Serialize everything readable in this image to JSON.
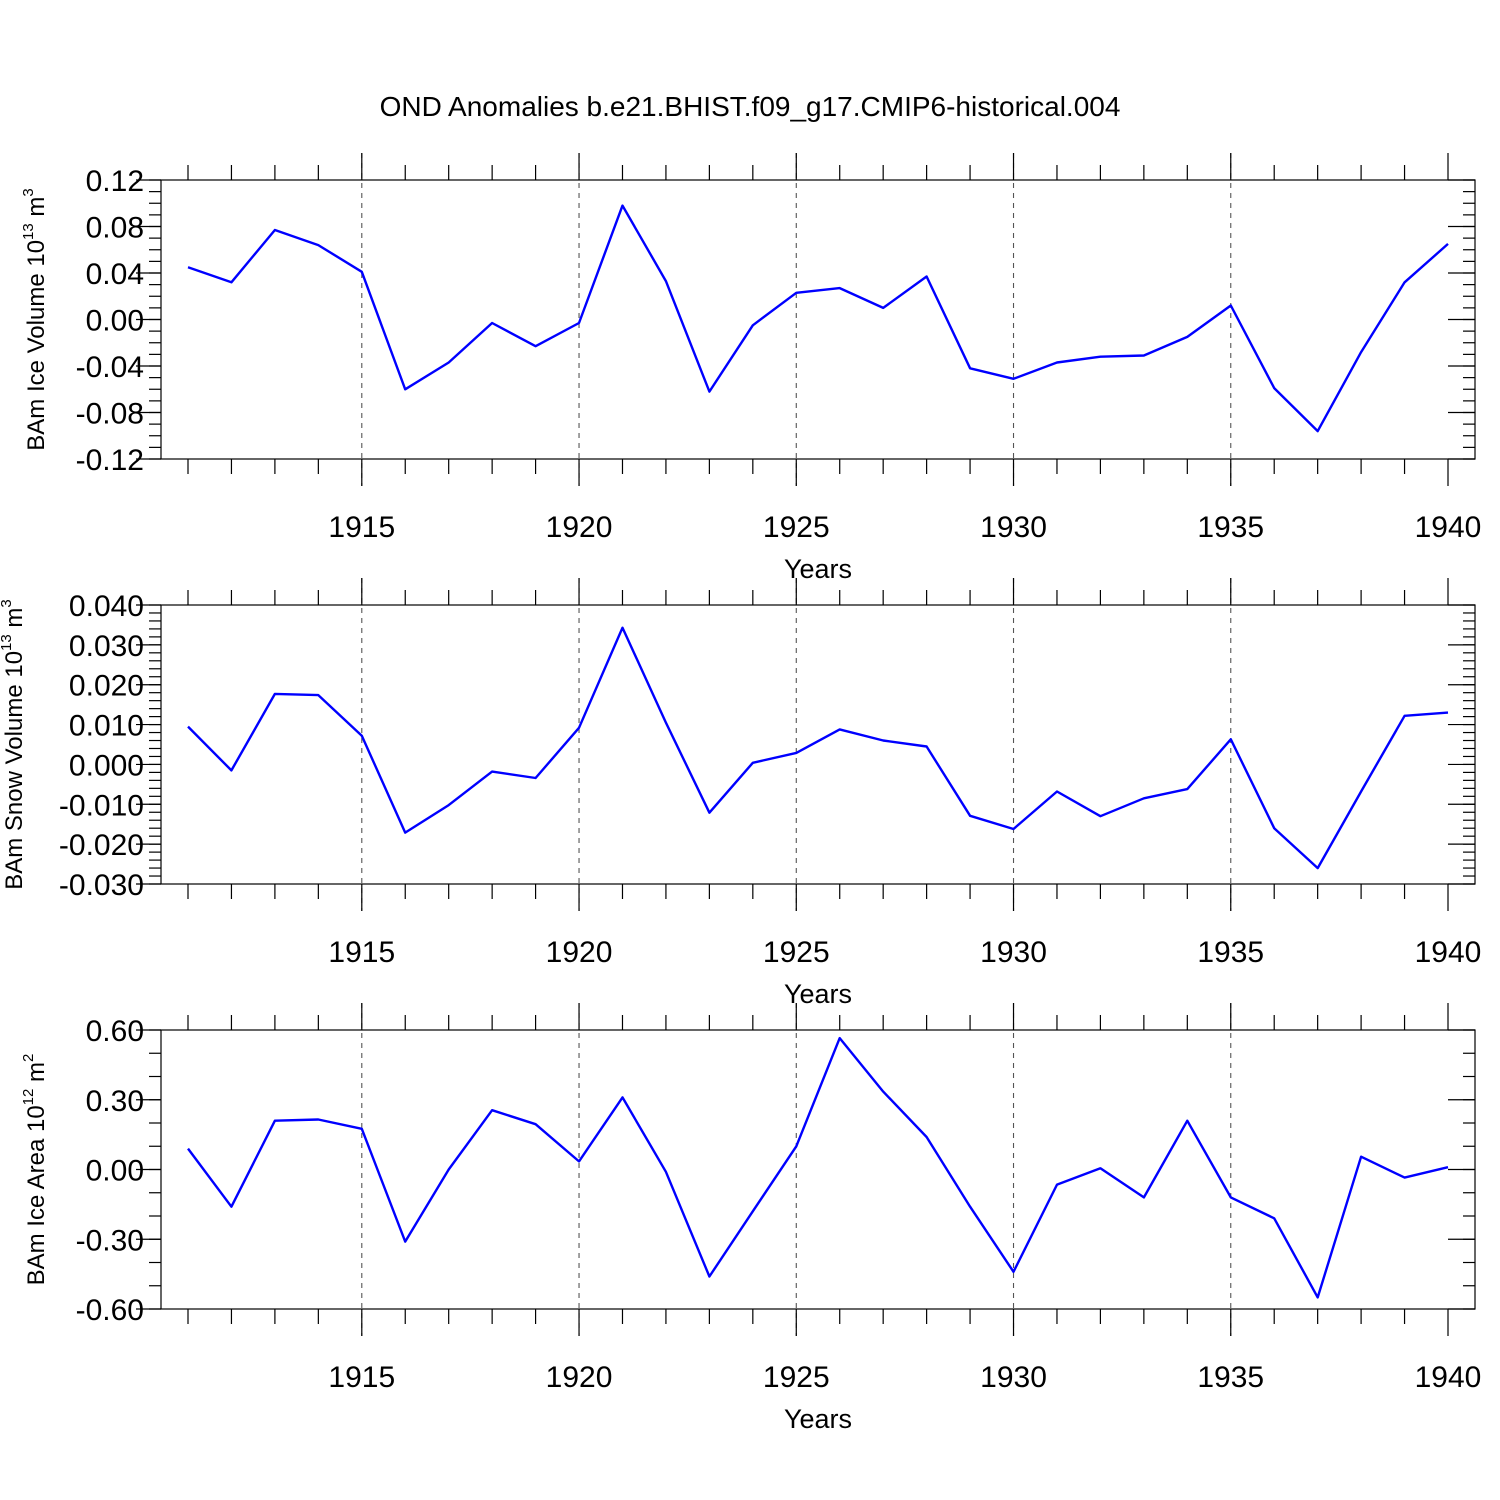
{
  "title": "OND Anomalies b.e21.BHIST.f09_g17.CMIP6-historical.004",
  "line_color": "#0000ff",
  "chart_data": [
    {
      "type": "line",
      "ylabel": "BAm Ice Volume 10",
      "ylabel_exp": "13",
      "ylabel_unit": " m",
      "ylabel_unit_exp": "3",
      "xlabel": "Years",
      "xlim": [
        1911,
        1940
      ],
      "ylim": [
        -0.12,
        0.12
      ],
      "ytick_values": [
        -0.12,
        -0.08,
        -0.04,
        0.0,
        0.04,
        0.08,
        0.12
      ],
      "ytick_labels": [
        "-0.12",
        "-0.08",
        "-0.04",
        "0.00",
        "0.04",
        "0.08",
        "0.12"
      ],
      "yminor_step": 0.01,
      "xtick_values": [
        1915,
        1920,
        1925,
        1930,
        1935,
        1940
      ],
      "xtick_labels": [
        "1915",
        "1920",
        "1925",
        "1930",
        "1935",
        "1940"
      ],
      "x": [
        1911,
        1912,
        1913,
        1914,
        1915,
        1916,
        1917,
        1918,
        1919,
        1920,
        1921,
        1922,
        1923,
        1924,
        1925,
        1926,
        1927,
        1928,
        1929,
        1930,
        1931,
        1932,
        1933,
        1934,
        1935,
        1936,
        1937,
        1938,
        1939,
        1940
      ],
      "values": [
        0.045,
        0.032,
        0.077,
        0.064,
        0.041,
        -0.06,
        -0.037,
        -0.003,
        -0.023,
        -0.003,
        0.098,
        0.033,
        -0.062,
        -0.005,
        0.023,
        0.027,
        0.01,
        0.037,
        -0.042,
        -0.051,
        -0.037,
        -0.032,
        -0.031,
        -0.015,
        0.012,
        -0.059,
        -0.096,
        -0.028,
        0.032,
        0.065
      ]
    },
    {
      "type": "line",
      "ylabel": "BAm Snow Volume 10",
      "ylabel_exp": "13",
      "ylabel_unit": " m",
      "ylabel_unit_exp": "3",
      "xlabel": "Years",
      "xlim": [
        1911,
        1940
      ],
      "ylim": [
        -0.03,
        0.04
      ],
      "ytick_values": [
        -0.03,
        -0.02,
        -0.01,
        0.0,
        0.01,
        0.02,
        0.03,
        0.04
      ],
      "ytick_labels": [
        "-0.030",
        "-0.020",
        "-0.010",
        "0.000",
        "0.010",
        "0.020",
        "0.030",
        "0.040"
      ],
      "yminor_step": 0.002,
      "xtick_values": [
        1915,
        1920,
        1925,
        1930,
        1935,
        1940
      ],
      "xtick_labels": [
        "1915",
        "1920",
        "1925",
        "1930",
        "1935",
        "1940"
      ],
      "x": [
        1911,
        1912,
        1913,
        1914,
        1915,
        1916,
        1917,
        1918,
        1919,
        1920,
        1921,
        1922,
        1923,
        1924,
        1925,
        1926,
        1927,
        1928,
        1929,
        1930,
        1931,
        1932,
        1933,
        1934,
        1935,
        1936,
        1937,
        1938,
        1939,
        1940
      ],
      "values": [
        0.0095,
        -0.0015,
        0.0177,
        0.0174,
        0.0072,
        -0.0171,
        -0.0102,
        -0.0018,
        -0.0034,
        0.0092,
        0.0343,
        0.0105,
        -0.0121,
        0.0004,
        0.0029,
        0.0088,
        0.006,
        0.0045,
        -0.0129,
        -0.0162,
        -0.0068,
        -0.013,
        -0.0085,
        -0.0062,
        0.0063,
        -0.016,
        -0.026,
        -0.0068,
        0.0122,
        0.013
      ]
    },
    {
      "type": "line",
      "ylabel": "BAm Ice Area 10",
      "ylabel_exp": "12",
      "ylabel_unit": " m",
      "ylabel_unit_exp": "2",
      "xlabel": "Years",
      "xlim": [
        1911,
        1940
      ],
      "ylim": [
        -0.6,
        0.6
      ],
      "ytick_values": [
        -0.6,
        -0.3,
        0.0,
        0.3,
        0.6
      ],
      "ytick_labels": [
        "-0.60",
        "-0.30",
        "0.00",
        "0.30",
        "0.60"
      ],
      "yminor_step": 0.1,
      "xtick_values": [
        1915,
        1920,
        1925,
        1930,
        1935,
        1940
      ],
      "xtick_labels": [
        "1915",
        "1920",
        "1925",
        "1930",
        "1935",
        "1940"
      ],
      "x": [
        1911,
        1912,
        1913,
        1914,
        1915,
        1916,
        1917,
        1918,
        1919,
        1920,
        1921,
        1922,
        1923,
        1924,
        1925,
        1926,
        1927,
        1928,
        1929,
        1930,
        1931,
        1932,
        1933,
        1934,
        1935,
        1936,
        1937,
        1938,
        1939,
        1940
      ],
      "values": [
        0.09,
        -0.16,
        0.21,
        0.215,
        0.175,
        -0.31,
        0.0,
        0.255,
        0.195,
        0.035,
        0.31,
        -0.01,
        -0.46,
        -0.18,
        0.1,
        0.565,
        0.335,
        0.14,
        -0.16,
        -0.44,
        -0.065,
        0.005,
        -0.12,
        0.21,
        -0.12,
        -0.21,
        -0.55,
        0.055,
        -0.035,
        0.01
      ]
    }
  ]
}
